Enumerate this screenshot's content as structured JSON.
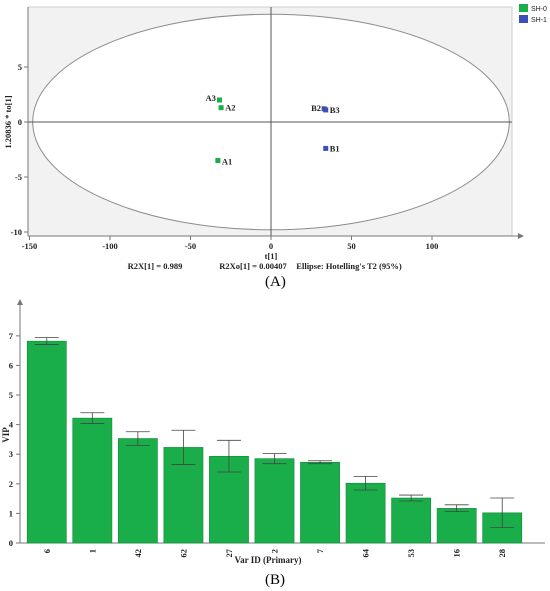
{
  "panels": {
    "a_label": "(A)",
    "b_label": "(B)"
  },
  "chart_data": [
    {
      "type": "scatter",
      "xlabel": "t[1]",
      "ylabel": "1.20836 * to[1]",
      "xlim": [
        -150,
        150
      ],
      "ylim": [
        -10,
        10
      ],
      "xticks": [
        "-150",
        "-100",
        "-50",
        "0",
        "50",
        "100"
      ],
      "yticks": [
        "-10",
        "-5",
        "0",
        "5"
      ],
      "grid": false,
      "legend_position": "top-right",
      "series": [
        {
          "name": "SH-0",
          "color": "#1aae4a",
          "points": [
            {
              "label": "A3",
              "x": -32,
              "y": 2.0
            },
            {
              "label": "A2",
              "x": -31,
              "y": 1.3
            },
            {
              "label": "A1",
              "x": -33,
              "y": -3.5
            }
          ]
        },
        {
          "name": "SH-1",
          "color": "#3a4fb8",
          "points": [
            {
              "label": "B2",
              "x": 33,
              "y": 1.2
            },
            {
              "label": "B3",
              "x": 34,
              "y": 1.1
            },
            {
              "label": "B1",
              "x": 34,
              "y": -2.4
            }
          ]
        }
      ],
      "ellipse": {
        "rx": 148,
        "ry": 9.8,
        "cx": 0,
        "cy": 0
      },
      "footnotes": [
        "R2X[1] = 0.989",
        "R2Xo[1] = 0.00407",
        "Ellipse: Hotelling's T2 (95%)"
      ]
    },
    {
      "type": "bar",
      "xlabel": "Var ID (Primary)",
      "ylabel": "VIP",
      "ylim": [
        0,
        7.4
      ],
      "yticks": [
        "0",
        "1",
        "2",
        "3",
        "4",
        "5",
        "6",
        "7"
      ],
      "grid": false,
      "bar_color": "#1aae4a",
      "categories": [
        "6",
        "1",
        "42",
        "62",
        "27",
        "2",
        "7",
        "64",
        "53",
        "16",
        "28"
      ],
      "values": [
        6.82,
        4.22,
        3.53,
        3.23,
        2.93,
        2.85,
        2.73,
        2.02,
        1.52,
        1.17,
        1.02
      ],
      "error_low": [
        6.71,
        4.04,
        3.3,
        2.65,
        2.4,
        2.68,
        2.68,
        1.79,
        1.42,
        1.06,
        0.52
      ],
      "error_high": [
        6.94,
        4.4,
        3.76,
        3.81,
        3.47,
        3.02,
        2.78,
        2.25,
        1.62,
        1.29,
        1.52
      ]
    }
  ]
}
